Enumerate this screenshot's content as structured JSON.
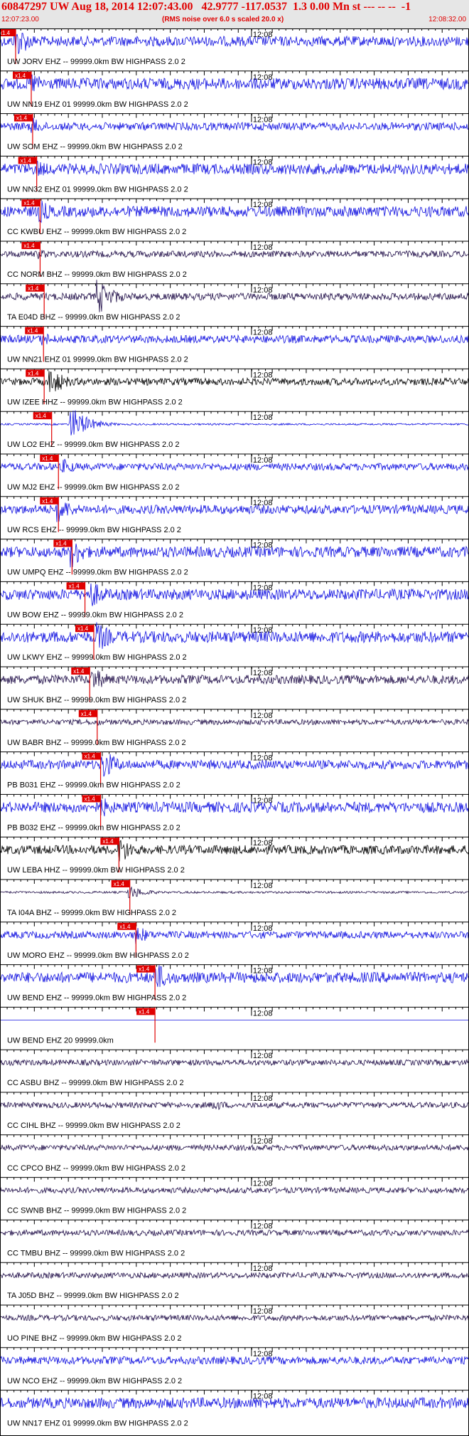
{
  "header": {
    "title": "60847297 UW Aug 18, 2014 12:07:43.00   42.9777 -117.0537  1.3 0.00 Mn st --- -- --  -1",
    "start_time": "12:07:23.00",
    "subtitle": "(RMS noise over 6.0 s scaled 20.0 x)",
    "end_time": "12:08:32.00"
  },
  "chart_data": {
    "type": "seismogram",
    "time_range": [
      "12:07:23.00",
      "12:08:32.00"
    ],
    "tick_label": "12:08",
    "tick_time_seconds": 37,
    "pick_label": "x1.4",
    "colors": {
      "blue": "#1010e0",
      "navy": "#22104a",
      "black": "#000000",
      "pick": "#e00000"
    },
    "traces": [
      {
        "label": "UW JORV EHZ -- 99999.0km BW  HIGHPASS  2.0  2",
        "color": "blue",
        "pick_s": 2.3,
        "amplitude": 0.28,
        "burst_s": 2.3,
        "burst_amp": 1.0
      },
      {
        "label": "UW NN19 EHZ 01 99999.0km BW  HIGHPASS  2.0  2",
        "color": "blue",
        "pick_s": 4.6,
        "amplitude": 0.32,
        "burst_s": 4.6,
        "burst_amp": 0.7
      },
      {
        "label": "UW SOM EHZ -- 99999.0km BW  HIGHPASS  2.0  2",
        "color": "blue",
        "pick_s": 4.8,
        "amplitude": 0.22,
        "burst_s": 4.8,
        "burst_amp": 0.5
      },
      {
        "label": "UW NN32 EHZ 01 99999.0km BW  HIGHPASS  2.0  2",
        "color": "blue",
        "pick_s": 5.4,
        "amplitude": 0.3,
        "burst_s": 5.5,
        "burst_amp": 0.55
      },
      {
        "label": "CC KWBU EHZ -- 99999.0km BW  HIGHPASS  2.0  2",
        "color": "blue",
        "pick_s": 5.9,
        "amplitude": 0.3,
        "burst_s": 6.0,
        "burst_amp": 0.65
      },
      {
        "label": "CC NORM BHZ -- 99999.0km BW  HIGHPASS  2.0  2",
        "color": "navy",
        "pick_s": 5.9,
        "amplitude": 0.18,
        "burst_s": 5.9,
        "burst_amp": 0.3
      },
      {
        "label": "TA E04D BHZ -- 99999.0km BW  HIGHPASS  2.0  2",
        "color": "navy",
        "pick_s": 6.5,
        "amplitude": 0.2,
        "burst_s": 14.5,
        "burst_amp": 1.0
      },
      {
        "label": "UW NN21 EHZ 01 99999.0km BW  HIGHPASS  2.0  2",
        "color": "blue",
        "pick_s": 6.4,
        "amplitude": 0.22,
        "burst_s": 6.4,
        "burst_amp": 0.4
      },
      {
        "label": "UW IZEE HHZ -- 99999.0km BW  HIGHPASS  2.0  2",
        "color": "black",
        "pick_s": 6.5,
        "amplitude": 0.2,
        "burst_s": 7.5,
        "burst_amp": 0.8
      },
      {
        "label": "UW LO2 EHZ -- 99999.0km BW  HIGHPASS  2.0  2",
        "color": "blue",
        "pick_s": 7.6,
        "amplitude": 0.05,
        "burst_s": 10.5,
        "burst_amp": 1.0
      },
      {
        "label": "UW MJ2 EHZ -- 99999.0km BW  HIGHPASS  2.0  2",
        "color": "blue",
        "pick_s": 8.6,
        "amplitude": 0.2,
        "burst_s": 9.5,
        "burst_amp": 0.45
      },
      {
        "label": "UW RCS EHZ -- 99999.0km BW  HIGHPASS  2.0  2",
        "color": "blue",
        "pick_s": 8.6,
        "amplitude": 0.25,
        "burst_s": 8.5,
        "burst_amp": 0.8
      },
      {
        "label": "UW UMPQ EHZ -- 99999.0km BW  HIGHPASS  2.0  2",
        "color": "blue",
        "pick_s": 10.6,
        "amplitude": 0.3,
        "burst_s": 10.6,
        "burst_amp": 0.9
      },
      {
        "label": "UW BOW EHZ -- 99999.0km BW  HIGHPASS  2.0  2",
        "color": "blue",
        "pick_s": 12.5,
        "amplitude": 0.3,
        "burst_s": 13.5,
        "burst_amp": 0.8
      },
      {
        "label": "UW LKWY EHZ -- 99999.0km BW  HIGHPASS  2.0  2",
        "color": "blue",
        "pick_s": 13.8,
        "amplitude": 0.32,
        "burst_s": 14.5,
        "burst_amp": 0.85
      },
      {
        "label": "UW SHUK BHZ -- 99999.0km BW  HIGHPASS  2.0  2",
        "color": "navy",
        "pick_s": 13.2,
        "amplitude": 0.25,
        "burst_s": 13.7,
        "burst_amp": 0.7
      },
      {
        "label": "UW BABR BHZ -- 99999.0km BW  HIGHPASS  2.0  2",
        "color": "navy",
        "pick_s": 14.3,
        "amplitude": 0.15,
        "burst_s": 14.3,
        "burst_amp": 0.2
      },
      {
        "label": "PB B031 EHZ -- 99999.0km BW  HIGHPASS  2.0  2",
        "color": "blue",
        "pick_s": 14.8,
        "amplitude": 0.25,
        "burst_s": 15.2,
        "burst_amp": 0.9
      },
      {
        "label": "PB B032 EHZ -- 99999.0km BW  HIGHPASS  2.0  2",
        "color": "blue",
        "pick_s": 14.8,
        "amplitude": 0.3,
        "burst_s": 15.0,
        "burst_amp": 0.6
      },
      {
        "label": "UW LEBA HHZ -- 99999.0km BW  HIGHPASS  2.0  2",
        "color": "black",
        "pick_s": 17.5,
        "amplitude": 0.25,
        "burst_s": 17.6,
        "burst_amp": 0.8
      },
      {
        "label": "TA I04A BHZ -- 99999.0km BW  HIGHPASS  2.0  2",
        "color": "navy",
        "pick_s": 19.1,
        "amplitude": 0.06,
        "burst_s": 19.1,
        "burst_amp": 0.4
      },
      {
        "label": "UW MORO EHZ -- 99999.0km BW  HIGHPASS  2.0  2",
        "color": "blue",
        "pick_s": 20.0,
        "amplitude": 0.2,
        "burst_s": 20.1,
        "burst_amp": 0.55
      },
      {
        "label": "UW BEND EHZ -- 99999.0km BW  HIGHPASS  2.0  2",
        "color": "blue",
        "pick_s": 22.8,
        "amplitude": 0.3,
        "burst_s": 22.9,
        "burst_amp": 0.9
      },
      {
        "label": "UW BEND EHZ 20 99999.0km",
        "color": "blue",
        "pick_s": 22.8,
        "amplitude": 0.0,
        "burst_s": 22.8,
        "burst_amp": 0.0
      },
      {
        "label": "CC ASBU BHZ -- 99999.0km BW  HIGHPASS  2.0  2",
        "color": "navy",
        "pick_s": null,
        "amplitude": 0.16,
        "burst_s": null,
        "burst_amp": 0
      },
      {
        "label": "CC CIHL BHZ -- 99999.0km BW  HIGHPASS  2.0  2",
        "color": "navy",
        "pick_s": null,
        "amplitude": 0.16,
        "burst_s": 31.5,
        "burst_amp": 0.35
      },
      {
        "label": "CC CPCO BHZ -- 99999.0km BW  HIGHPASS  2.0  2",
        "color": "navy",
        "pick_s": null,
        "amplitude": 0.16,
        "burst_s": null,
        "burst_amp": 0
      },
      {
        "label": "CC SWNB BHZ -- 99999.0km BW  HIGHPASS  2.0  2",
        "color": "navy",
        "pick_s": null,
        "amplitude": 0.16,
        "burst_s": null,
        "burst_amp": 0
      },
      {
        "label": "CC TMBU BHZ -- 99999.0km BW  HIGHPASS  2.0  2",
        "color": "navy",
        "pick_s": null,
        "amplitude": 0.16,
        "burst_s": null,
        "burst_amp": 0
      },
      {
        "label": "TA J05D BHZ -- 99999.0km BW  HIGHPASS  2.0  2",
        "color": "navy",
        "pick_s": null,
        "amplitude": 0.16,
        "burst_s": null,
        "burst_amp": 0
      },
      {
        "label": "UO PINE BHZ -- 99999.0km BW  HIGHPASS  2.0  2",
        "color": "navy",
        "pick_s": null,
        "amplitude": 0.16,
        "burst_s": null,
        "burst_amp": 0
      },
      {
        "label": "UW NCO EHZ -- 99999.0km BW  HIGHPASS  2.0  2",
        "color": "blue",
        "pick_s": null,
        "amplitude": 0.22,
        "burst_s": null,
        "burst_amp": 0
      },
      {
        "label": "UW NN17 EHZ 01 99999.0km BW  HIGHPASS  2.0  2",
        "color": "blue",
        "pick_s": null,
        "amplitude": 0.3,
        "burst_s": null,
        "burst_amp": 0
      }
    ]
  }
}
